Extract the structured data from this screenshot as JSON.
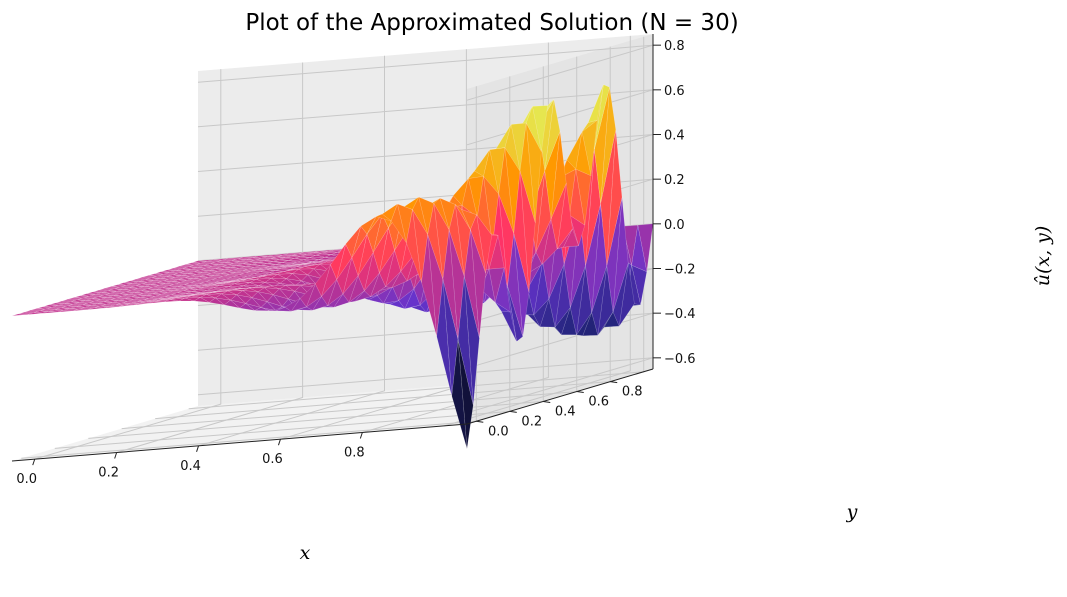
{
  "chart_data": {
    "type": "surface3d",
    "title": "Plot of the Approximated Solution (N = 30)",
    "xlabel": "x",
    "ylabel": "y",
    "zlabel": "û(x, y)",
    "x_ticks": [
      "0.0",
      "0.2",
      "0.4",
      "0.6",
      "0.8"
    ],
    "y_ticks": [
      "0.0",
      "0.2",
      "0.4",
      "0.6",
      "0.8"
    ],
    "z_ticks": [
      "−0.6",
      "−0.4",
      "−0.2",
      "0.0",
      "0.2",
      "0.4",
      "0.6",
      "0.8"
    ],
    "xlim": [
      0,
      1
    ],
    "ylim": [
      0,
      1
    ],
    "zlim": [
      -0.65,
      0.85
    ],
    "grid": true,
    "colormap": "CMRmap",
    "colormap_stops": [
      "#000000",
      "#262680",
      "#6633cc",
      "#ff3366",
      "#ff9900",
      "#e6e64d",
      "#ffffff"
    ],
    "mesh_points": 30,
    "grid_color": "#c8c8c8",
    "pane_colors": [
      "#f2f2f2",
      "#ececec",
      "#e4e4e4"
    ]
  }
}
